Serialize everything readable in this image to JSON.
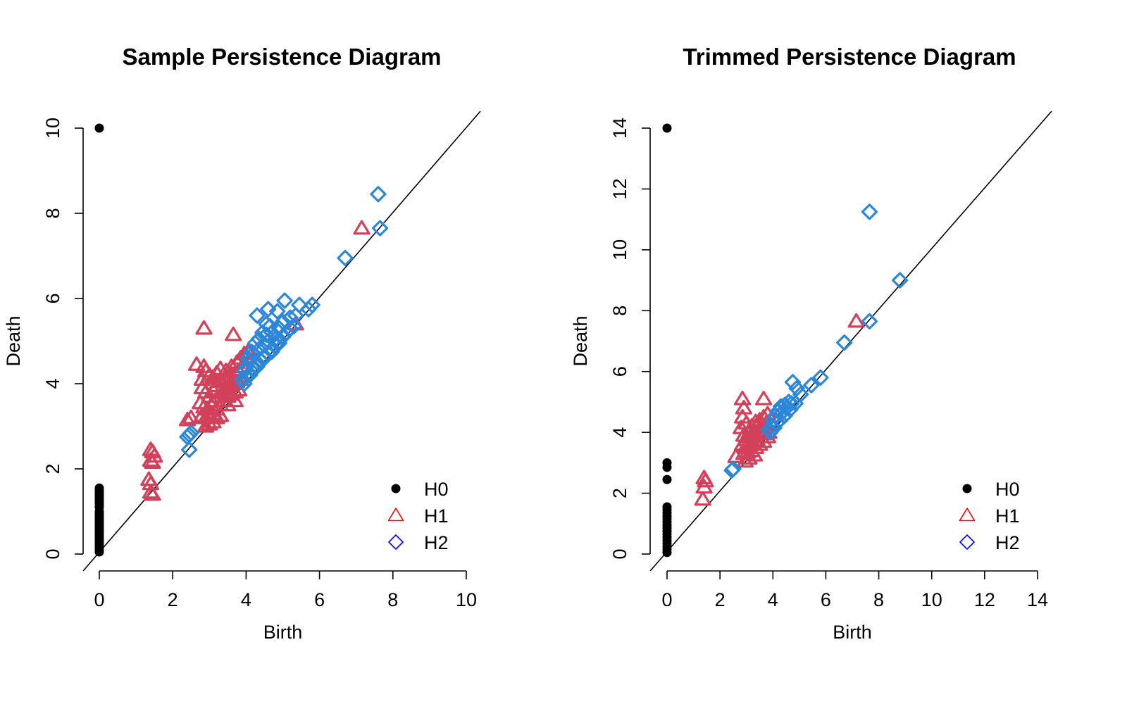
{
  "colors": {
    "H0": "#000000",
    "H1": "#d3405a",
    "H2": "#2c87d9",
    "legend_H1": "#ff0000",
    "legend_H2": "#0000ff"
  },
  "chart_data": [
    {
      "type": "scatter",
      "title": "Sample Persistence Diagram",
      "xlabel": "Birth",
      "ylabel": "Death",
      "xlim": [
        0,
        10
      ],
      "ylim": [
        0,
        10
      ],
      "xticks": [
        "0",
        "2",
        "4",
        "6",
        "8",
        "10"
      ],
      "yticks": [
        "0",
        "2",
        "4",
        "6",
        "8",
        "10"
      ],
      "diagonal": "y = x",
      "legend": {
        "position": "bottom-right",
        "entries": [
          "H0",
          "H1",
          "H2"
        ]
      },
      "series": [
        {
          "name": "H0",
          "marker": "filled-circle",
          "points": [
            [
              0,
              10
            ],
            [
              0,
              1.55
            ],
            [
              0,
              1.5
            ],
            [
              0,
              1.45
            ],
            [
              0,
              1.4
            ],
            [
              0,
              1.35
            ],
            [
              0,
              1.3
            ],
            [
              0,
              1.25
            ],
            [
              0,
              1.2
            ],
            [
              0,
              1.15
            ],
            [
              0,
              1.1
            ],
            [
              0,
              1.0
            ],
            [
              0,
              0.95
            ],
            [
              0,
              0.9
            ],
            [
              0,
              0.85
            ],
            [
              0,
              0.8
            ],
            [
              0,
              0.75
            ],
            [
              0,
              0.7
            ],
            [
              0,
              0.65
            ],
            [
              0,
              0.6
            ],
            [
              0,
              0.55
            ],
            [
              0,
              0.5
            ],
            [
              0,
              0.45
            ],
            [
              0,
              0.4
            ],
            [
              0,
              0.35
            ],
            [
              0,
              0.3
            ],
            [
              0,
              0.25
            ],
            [
              0,
              0.2
            ],
            [
              0,
              0.15
            ],
            [
              0,
              0.1
            ],
            [
              0,
              0.05
            ]
          ]
        },
        {
          "name": "H1",
          "marker": "open-triangle",
          "points": [
            [
              1.4,
              2.45
            ],
            [
              1.45,
              2.4
            ],
            [
              1.5,
              2.3
            ],
            [
              1.4,
              2.2
            ],
            [
              1.45,
              2.15
            ],
            [
              1.35,
              1.75
            ],
            [
              1.4,
              1.65
            ],
            [
              1.4,
              1.45
            ],
            [
              1.45,
              1.4
            ],
            [
              2.85,
              5.3
            ],
            [
              3.65,
              5.15
            ],
            [
              2.65,
              4.45
            ],
            [
              2.85,
              4.4
            ],
            [
              2.9,
              4.3
            ],
            [
              3.0,
              4.2
            ],
            [
              2.8,
              4.1
            ],
            [
              3.1,
              4.15
            ],
            [
              3.2,
              4.25
            ],
            [
              3.3,
              4.35
            ],
            [
              3.45,
              4.3
            ],
            [
              3.6,
              4.4
            ],
            [
              3.75,
              4.5
            ],
            [
              3.85,
              4.6
            ],
            [
              3.95,
              4.7
            ],
            [
              4.05,
              4.75
            ],
            [
              2.8,
              3.9
            ],
            [
              2.9,
              3.8
            ],
            [
              3.0,
              3.7
            ],
            [
              3.1,
              3.85
            ],
            [
              3.2,
              3.95
            ],
            [
              3.3,
              4.05
            ],
            [
              3.4,
              4.1
            ],
            [
              3.5,
              4.15
            ],
            [
              3.6,
              4.2
            ],
            [
              3.7,
              4.25
            ],
            [
              3.8,
              4.3
            ],
            [
              3.9,
              4.4
            ],
            [
              2.75,
              3.55
            ],
            [
              2.85,
              3.45
            ],
            [
              2.95,
              3.4
            ],
            [
              3.05,
              3.5
            ],
            [
              3.15,
              3.6
            ],
            [
              3.25,
              3.7
            ],
            [
              3.35,
              3.8
            ],
            [
              3.45,
              3.9
            ],
            [
              3.55,
              3.95
            ],
            [
              3.65,
              4.0
            ],
            [
              3.75,
              4.05
            ],
            [
              3.85,
              4.1
            ],
            [
              2.8,
              3.25
            ],
            [
              2.9,
              3.2
            ],
            [
              3.0,
              3.25
            ],
            [
              3.1,
              3.3
            ],
            [
              3.2,
              3.4
            ],
            [
              3.3,
              3.5
            ],
            [
              3.4,
              3.6
            ],
            [
              3.5,
              3.7
            ],
            [
              3.6,
              3.75
            ],
            [
              3.7,
              3.8
            ],
            [
              3.8,
              3.85
            ],
            [
              2.5,
              3.2
            ],
            [
              2.4,
              3.15
            ],
            [
              2.9,
              3.0
            ],
            [
              3.0,
              3.05
            ],
            [
              3.1,
              3.1
            ],
            [
              3.2,
              3.2
            ],
            [
              3.3,
              3.25
            ],
            [
              3.5,
              3.5
            ],
            [
              3.7,
              3.6
            ],
            [
              5.35,
              5.4
            ],
            [
              7.15,
              7.65
            ]
          ]
        },
        {
          "name": "H2",
          "marker": "open-diamond",
          "points": [
            [
              2.4,
              2.75
            ],
            [
              2.45,
              2.8
            ],
            [
              2.5,
              2.85
            ],
            [
              2.45,
              2.45
            ],
            [
              6.7,
              6.95
            ],
            [
              7.6,
              8.45
            ],
            [
              7.65,
              7.65
            ],
            [
              5.05,
              5.95
            ],
            [
              4.6,
              5.75
            ],
            [
              4.3,
              5.6
            ],
            [
              4.85,
              5.7
            ],
            [
              4.55,
              5.4
            ],
            [
              5.45,
              5.85
            ],
            [
              5.8,
              5.85
            ],
            [
              5.7,
              5.75
            ],
            [
              5.2,
              5.55
            ],
            [
              5.35,
              5.6
            ],
            [
              5.0,
              5.45
            ],
            [
              4.9,
              5.3
            ],
            [
              4.7,
              5.2
            ],
            [
              4.8,
              5.05
            ],
            [
              4.6,
              5.0
            ],
            [
              4.5,
              4.9
            ],
            [
              4.4,
              4.85
            ],
            [
              4.35,
              4.8
            ],
            [
              4.2,
              4.7
            ],
            [
              4.1,
              4.55
            ],
            [
              4.0,
              4.4
            ],
            [
              4.3,
              4.5
            ],
            [
              4.5,
              4.65
            ],
            [
              4.7,
              4.8
            ],
            [
              4.9,
              5.0
            ],
            [
              5.1,
              5.2
            ],
            [
              5.3,
              5.35
            ],
            [
              4.45,
              5.2
            ],
            [
              4.55,
              5.15
            ],
            [
              4.25,
              4.95
            ],
            [
              4.15,
              4.75
            ],
            [
              4.05,
              4.6
            ],
            [
              3.95,
              4.3
            ],
            [
              3.9,
              4.1
            ],
            [
              4.0,
              4.15
            ],
            [
              4.2,
              4.35
            ],
            [
              4.4,
              4.55
            ],
            [
              4.6,
              4.7
            ],
            [
              4.8,
              4.9
            ],
            [
              5.0,
              5.1
            ],
            [
              5.2,
              5.3
            ],
            [
              4.35,
              5.05
            ],
            [
              4.65,
              5.35
            ],
            [
              3.95,
              4.0
            ],
            [
              4.1,
              4.2
            ],
            [
              4.3,
              4.4
            ],
            [
              4.5,
              4.6
            ],
            [
              4.7,
              4.75
            ],
            [
              4.9,
              4.95
            ]
          ]
        }
      ]
    },
    {
      "type": "scatter",
      "title": "Trimmed Persistence Diagram",
      "xlabel": "Birth",
      "ylabel": "Death",
      "xlim": [
        0,
        14
      ],
      "ylim": [
        0,
        14
      ],
      "xticks": [
        "0",
        "2",
        "4",
        "6",
        "8",
        "10",
        "12",
        "14"
      ],
      "yticks": [
        "0",
        "2",
        "4",
        "6",
        "8",
        "10",
        "12",
        "14"
      ],
      "diagonal": "y = x",
      "legend": {
        "position": "bottom-right",
        "entries": [
          "H0",
          "H1",
          "H2"
        ]
      },
      "series": [
        {
          "name": "H0",
          "marker": "filled-circle",
          "points": [
            [
              0,
              14
            ],
            [
              0,
              3.0
            ],
            [
              0,
              2.85
            ],
            [
              0,
              2.45
            ],
            [
              0,
              1.55
            ],
            [
              0,
              1.45
            ],
            [
              0,
              1.35
            ],
            [
              0,
              1.25
            ],
            [
              0,
              1.15
            ],
            [
              0,
              1.05
            ],
            [
              0,
              0.95
            ],
            [
              0,
              0.85
            ],
            [
              0,
              0.75
            ],
            [
              0,
              0.65
            ],
            [
              0,
              0.55
            ],
            [
              0,
              0.45
            ],
            [
              0,
              0.35
            ],
            [
              0,
              0.25
            ],
            [
              0,
              0.15
            ],
            [
              0,
              0.05
            ]
          ]
        },
        {
          "name": "H1",
          "marker": "open-triangle",
          "points": [
            [
              1.4,
              2.5
            ],
            [
              1.45,
              2.4
            ],
            [
              1.4,
              2.2
            ],
            [
              1.35,
              1.8
            ],
            [
              2.85,
              5.1
            ],
            [
              3.65,
              5.1
            ],
            [
              2.9,
              4.8
            ],
            [
              2.85,
              4.5
            ],
            [
              3.0,
              4.3
            ],
            [
              2.8,
              4.15
            ],
            [
              3.1,
              4.0
            ],
            [
              3.2,
              4.2
            ],
            [
              3.35,
              4.35
            ],
            [
              3.5,
              4.4
            ],
            [
              3.65,
              4.5
            ],
            [
              3.8,
              4.6
            ],
            [
              2.9,
              3.9
            ],
            [
              3.0,
              3.75
            ],
            [
              3.15,
              3.85
            ],
            [
              3.3,
              3.95
            ],
            [
              3.45,
              4.05
            ],
            [
              3.6,
              4.15
            ],
            [
              3.75,
              4.3
            ],
            [
              2.85,
              3.6
            ],
            [
              2.95,
              3.5
            ],
            [
              3.1,
              3.55
            ],
            [
              3.25,
              3.65
            ],
            [
              3.4,
              3.75
            ],
            [
              3.55,
              3.85
            ],
            [
              3.7,
              3.95
            ],
            [
              3.85,
              4.0
            ],
            [
              2.9,
              3.3
            ],
            [
              3.05,
              3.35
            ],
            [
              3.2,
              3.4
            ],
            [
              3.35,
              3.5
            ],
            [
              3.5,
              3.6
            ],
            [
              3.65,
              3.7
            ],
            [
              2.6,
              3.2
            ],
            [
              2.95,
              3.05
            ],
            [
              3.1,
              3.15
            ],
            [
              3.3,
              3.25
            ],
            [
              3.8,
              3.85
            ],
            [
              7.15,
              7.65
            ]
          ]
        },
        {
          "name": "H2",
          "marker": "open-diamond",
          "points": [
            [
              7.65,
              11.25
            ],
            [
              8.8,
              9.0
            ],
            [
              6.7,
              6.95
            ],
            [
              7.65,
              7.65
            ],
            [
              2.45,
              2.75
            ],
            [
              2.5,
              2.8
            ],
            [
              4.75,
              5.65
            ],
            [
              5.8,
              5.8
            ],
            [
              5.45,
              5.55
            ],
            [
              4.9,
              5.45
            ],
            [
              5.05,
              5.25
            ],
            [
              4.6,
              5.0
            ],
            [
              4.45,
              4.9
            ],
            [
              4.3,
              4.85
            ],
            [
              4.2,
              4.7
            ],
            [
              4.1,
              4.55
            ],
            [
              4.0,
              4.4
            ],
            [
              3.95,
              4.2
            ],
            [
              3.85,
              4.1
            ],
            [
              4.05,
              4.15
            ],
            [
              4.25,
              4.4
            ],
            [
              4.45,
              4.55
            ],
            [
              4.65,
              4.75
            ],
            [
              4.85,
              4.95
            ],
            [
              4.5,
              4.8
            ],
            [
              4.7,
              4.95
            ],
            [
              4.35,
              4.65
            ],
            [
              4.15,
              4.3
            ],
            [
              3.9,
              4.0
            ]
          ]
        }
      ]
    }
  ]
}
